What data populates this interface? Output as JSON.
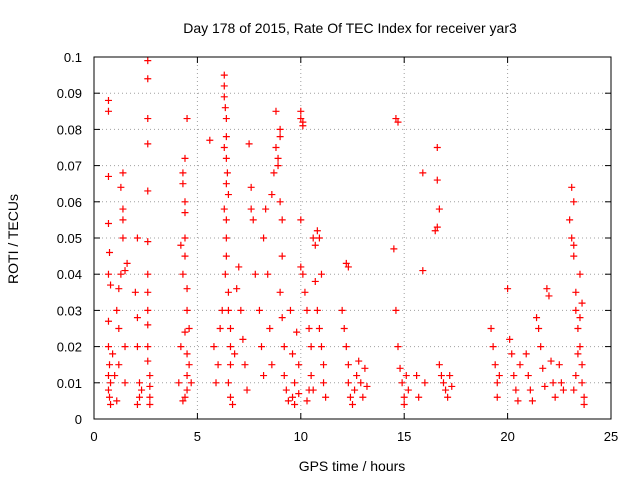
{
  "chart_data": {
    "type": "scatter",
    "title": "Day 178 of 2015, Rate Of TEC Index for receiver yar3",
    "xlabel": "GPS time / hours",
    "ylabel": "ROTI / TECUs",
    "xlim": [
      0,
      25
    ],
    "ylim": [
      0,
      0.1
    ],
    "x_ticks": [
      0,
      5,
      10,
      15,
      20,
      25
    ],
    "y_ticks": [
      0,
      0.01,
      0.02,
      0.03,
      0.04,
      0.05,
      0.06,
      0.07,
      0.08,
      0.09,
      0.1
    ],
    "x_tick_labels": [
      "0",
      "5",
      "10",
      "15",
      "20",
      "25"
    ],
    "y_tick_labels": [
      "0",
      "0.01",
      "0.02",
      "0.03",
      "0.04",
      "0.05",
      "0.06",
      "0.07",
      "0.08",
      "0.09",
      "0.1"
    ],
    "grid": true,
    "marker": "+",
    "marker_color": "#ff0000",
    "series": [
      {
        "points": [
          [
            0.7,
            0.088
          ],
          [
            0.7,
            0.085
          ],
          [
            0.7,
            0.067
          ],
          [
            0.7,
            0.054
          ],
          [
            0.75,
            0.046
          ],
          [
            0.7,
            0.04
          ],
          [
            0.8,
            0.037
          ],
          [
            0.7,
            0.027
          ],
          [
            0.7,
            0.02
          ],
          [
            0.75,
            0.015
          ],
          [
            0.7,
            0.012
          ],
          [
            0.8,
            0.01
          ],
          [
            0.7,
            0.008
          ],
          [
            0.75,
            0.006
          ],
          [
            0.8,
            0.004
          ],
          [
            0.9,
            0.018
          ],
          [
            1.0,
            0.012
          ],
          [
            1.1,
            0.03
          ],
          [
            1.2,
            0.036
          ],
          [
            1.2,
            0.025
          ],
          [
            1.3,
            0.064
          ],
          [
            1.4,
            0.068
          ],
          [
            1.4,
            0.058
          ],
          [
            1.4,
            0.055
          ],
          [
            1.4,
            0.05
          ],
          [
            1.3,
            0.04
          ],
          [
            1.5,
            0.041
          ],
          [
            1.5,
            0.02
          ],
          [
            1.5,
            0.01
          ],
          [
            1.6,
            0.043
          ],
          [
            1.1,
            0.005
          ],
          [
            1.2,
            0.015
          ],
          [
            2.1,
            0.05
          ],
          [
            2.0,
            0.035
          ],
          [
            2.1,
            0.028
          ],
          [
            2.1,
            0.02
          ],
          [
            2.2,
            0.01
          ],
          [
            2.2,
            0.006
          ],
          [
            2.1,
            0.004
          ],
          [
            2.3,
            0.008
          ],
          [
            2.6,
            0.099
          ],
          [
            2.6,
            0.094
          ],
          [
            2.6,
            0.083
          ],
          [
            2.6,
            0.076
          ],
          [
            2.6,
            0.063
          ],
          [
            2.6,
            0.049
          ],
          [
            2.6,
            0.04
          ],
          [
            2.6,
            0.035
          ],
          [
            2.6,
            0.03
          ],
          [
            2.6,
            0.026
          ],
          [
            2.6,
            0.02
          ],
          [
            2.7,
            0.012
          ],
          [
            2.7,
            0.009
          ],
          [
            2.7,
            0.006
          ],
          [
            2.7,
            0.004
          ],
          [
            2.6,
            0.016
          ],
          [
            4.1,
            0.01
          ],
          [
            4.2,
            0.02
          ],
          [
            4.2,
            0.048
          ],
          [
            4.3,
            0.068
          ],
          [
            4.4,
            0.072
          ],
          [
            4.3,
            0.065
          ],
          [
            4.4,
            0.06
          ],
          [
            4.4,
            0.057
          ],
          [
            4.4,
            0.05
          ],
          [
            4.4,
            0.045
          ],
          [
            4.3,
            0.04
          ],
          [
            4.5,
            0.036
          ],
          [
            4.5,
            0.03
          ],
          [
            4.4,
            0.024
          ],
          [
            4.5,
            0.018
          ],
          [
            4.5,
            0.012
          ],
          [
            4.5,
            0.008
          ],
          [
            4.4,
            0.006
          ],
          [
            4.5,
            0.083
          ],
          [
            4.6,
            0.025
          ],
          [
            4.6,
            0.015
          ],
          [
            4.7,
            0.01
          ],
          [
            4.3,
            0.005
          ],
          [
            5.6,
            0.077
          ],
          [
            5.8,
            0.02
          ],
          [
            5.9,
            0.01
          ],
          [
            6.0,
            0.015
          ],
          [
            6.1,
            0.025
          ],
          [
            6.2,
            0.03
          ],
          [
            6.3,
            0.095
          ],
          [
            6.3,
            0.092
          ],
          [
            6.3,
            0.089
          ],
          [
            6.35,
            0.086
          ],
          [
            6.4,
            0.083
          ],
          [
            6.4,
            0.078
          ],
          [
            6.3,
            0.075
          ],
          [
            6.4,
            0.072
          ],
          [
            6.45,
            0.068
          ],
          [
            6.4,
            0.065
          ],
          [
            6.5,
            0.062
          ],
          [
            6.3,
            0.058
          ],
          [
            6.4,
            0.055
          ],
          [
            6.4,
            0.05
          ],
          [
            6.4,
            0.045
          ],
          [
            6.35,
            0.04
          ],
          [
            6.5,
            0.035
          ],
          [
            6.5,
            0.03
          ],
          [
            6.6,
            0.025
          ],
          [
            6.6,
            0.02
          ],
          [
            6.6,
            0.015
          ],
          [
            6.5,
            0.01
          ],
          [
            6.6,
            0.006
          ],
          [
            6.7,
            0.004
          ],
          [
            6.8,
            0.018
          ],
          [
            6.9,
            0.036
          ],
          [
            7.0,
            0.042
          ],
          [
            7.1,
            0.03
          ],
          [
            7.2,
            0.022
          ],
          [
            7.3,
            0.015
          ],
          [
            7.4,
            0.008
          ],
          [
            7.5,
            0.076
          ],
          [
            7.6,
            0.064
          ],
          [
            7.6,
            0.058
          ],
          [
            7.7,
            0.055
          ],
          [
            7.8,
            0.04
          ],
          [
            8.0,
            0.03
          ],
          [
            8.1,
            0.02
          ],
          [
            8.2,
            0.012
          ],
          [
            8.2,
            0.05
          ],
          [
            8.3,
            0.058
          ],
          [
            8.4,
            0.04
          ],
          [
            8.5,
            0.025
          ],
          [
            8.6,
            0.015
          ],
          [
            8.6,
            0.062
          ],
          [
            8.7,
            0.068
          ],
          [
            8.8,
            0.085
          ],
          [
            8.8,
            0.075
          ],
          [
            8.9,
            0.072
          ],
          [
            8.9,
            0.07
          ],
          [
            9.0,
            0.08
          ],
          [
            9.0,
            0.078
          ],
          [
            9.0,
            0.06
          ],
          [
            9.1,
            0.055
          ],
          [
            9.1,
            0.045
          ],
          [
            9.0,
            0.035
          ],
          [
            9.1,
            0.028
          ],
          [
            9.2,
            0.02
          ],
          [
            9.2,
            0.012
          ],
          [
            9.3,
            0.008
          ],
          [
            9.4,
            0.005
          ],
          [
            9.5,
            0.03
          ],
          [
            9.6,
            0.018
          ],
          [
            9.7,
            0.01
          ],
          [
            9.8,
            0.024
          ],
          [
            9.9,
            0.015
          ],
          [
            10.0,
            0.085
          ],
          [
            10.0,
            0.083
          ],
          [
            10.1,
            0.082
          ],
          [
            10.1,
            0.081
          ],
          [
            10.0,
            0.055
          ],
          [
            10.0,
            0.042
          ],
          [
            10.1,
            0.04
          ],
          [
            10.2,
            0.035
          ],
          [
            10.3,
            0.03
          ],
          [
            10.4,
            0.025
          ],
          [
            10.5,
            0.02
          ],
          [
            10.6,
            0.05
          ],
          [
            10.7,
            0.048
          ],
          [
            10.8,
            0.052
          ],
          [
            10.9,
            0.05
          ],
          [
            11.0,
            0.04
          ],
          [
            10.7,
            0.038
          ],
          [
            10.8,
            0.03
          ],
          [
            10.9,
            0.025
          ],
          [
            11.0,
            0.02
          ],
          [
            11.1,
            0.015
          ],
          [
            11.1,
            0.01
          ],
          [
            11.2,
            0.006
          ],
          [
            10.6,
            0.008
          ],
          [
            10.5,
            0.012
          ],
          [
            10.4,
            0.008
          ],
          [
            10.3,
            0.005
          ],
          [
            9.7,
            0.004
          ],
          [
            9.6,
            0.006
          ],
          [
            9.9,
            0.007
          ],
          [
            12.0,
            0.03
          ],
          [
            12.1,
            0.025
          ],
          [
            12.2,
            0.043
          ],
          [
            12.3,
            0.042
          ],
          [
            12.2,
            0.02
          ],
          [
            12.3,
            0.015
          ],
          [
            12.3,
            0.01
          ],
          [
            12.4,
            0.006
          ],
          [
            12.5,
            0.004
          ],
          [
            12.6,
            0.008
          ],
          [
            12.7,
            0.012
          ],
          [
            12.8,
            0.016
          ],
          [
            12.9,
            0.01
          ],
          [
            13.0,
            0.006
          ],
          [
            13.1,
            0.014
          ],
          [
            13.2,
            0.009
          ],
          [
            14.5,
            0.047
          ],
          [
            14.6,
            0.083
          ],
          [
            14.7,
            0.082
          ],
          [
            14.6,
            0.03
          ],
          [
            14.7,
            0.02
          ],
          [
            14.8,
            0.014
          ],
          [
            14.9,
            0.01
          ],
          [
            15.0,
            0.006
          ],
          [
            15.0,
            0.004
          ],
          [
            15.1,
            0.012
          ],
          [
            15.2,
            0.008
          ],
          [
            15.6,
            0.012
          ],
          [
            15.7,
            0.006
          ],
          [
            15.9,
            0.068
          ],
          [
            15.9,
            0.041
          ],
          [
            16.0,
            0.01
          ],
          [
            16.6,
            0.075
          ],
          [
            16.6,
            0.066
          ],
          [
            16.7,
            0.058
          ],
          [
            16.6,
            0.053
          ],
          [
            16.5,
            0.052
          ],
          [
            16.7,
            0.015
          ],
          [
            16.8,
            0.012
          ],
          [
            16.9,
            0.01
          ],
          [
            17.0,
            0.008
          ],
          [
            17.1,
            0.006
          ],
          [
            17.2,
            0.012
          ],
          [
            17.3,
            0.009
          ],
          [
            19.2,
            0.025
          ],
          [
            19.3,
            0.02
          ],
          [
            19.4,
            0.015
          ],
          [
            19.5,
            0.01
          ],
          [
            19.5,
            0.006
          ],
          [
            19.6,
            0.012
          ],
          [
            20.0,
            0.036
          ],
          [
            20.1,
            0.022
          ],
          [
            20.2,
            0.018
          ],
          [
            20.3,
            0.012
          ],
          [
            20.4,
            0.008
          ],
          [
            20.5,
            0.005
          ],
          [
            20.6,
            0.015
          ],
          [
            20.9,
            0.018
          ],
          [
            21.0,
            0.012
          ],
          [
            21.1,
            0.008
          ],
          [
            21.2,
            0.005
          ],
          [
            21.4,
            0.028
          ],
          [
            21.5,
            0.025
          ],
          [
            21.6,
            0.02
          ],
          [
            21.7,
            0.014
          ],
          [
            21.8,
            0.009
          ],
          [
            21.9,
            0.036
          ],
          [
            22.0,
            0.034
          ],
          [
            22.1,
            0.016
          ],
          [
            22.2,
            0.01
          ],
          [
            22.3,
            0.006
          ],
          [
            22.5,
            0.015
          ],
          [
            22.6,
            0.01
          ],
          [
            22.7,
            0.008
          ],
          [
            23.0,
            0.055
          ],
          [
            23.1,
            0.05
          ],
          [
            23.2,
            0.048
          ],
          [
            23.1,
            0.064
          ],
          [
            23.2,
            0.06
          ],
          [
            23.2,
            0.045
          ],
          [
            23.3,
            0.035
          ],
          [
            23.3,
            0.03
          ],
          [
            23.4,
            0.025
          ],
          [
            23.5,
            0.04
          ],
          [
            23.5,
            0.02
          ],
          [
            23.6,
            0.015
          ],
          [
            23.6,
            0.01
          ],
          [
            23.7,
            0.006
          ],
          [
            23.7,
            0.004
          ],
          [
            23.6,
            0.032
          ],
          [
            23.5,
            0.028
          ],
          [
            23.4,
            0.018
          ],
          [
            23.3,
            0.012
          ],
          [
            23.2,
            0.008
          ]
        ]
      }
    ]
  }
}
